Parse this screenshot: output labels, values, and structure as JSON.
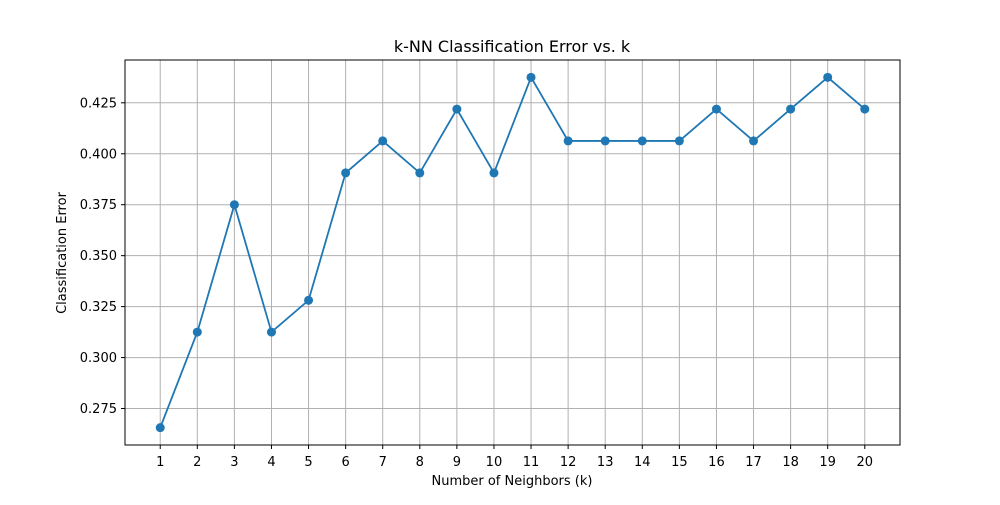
{
  "chart_data": {
    "type": "line",
    "title": "k-NN Classification Error vs. k",
    "xlabel": "Number of Neighbors (k)",
    "ylabel": "Classification Error",
    "x": [
      1,
      2,
      3,
      4,
      5,
      6,
      7,
      8,
      9,
      10,
      11,
      12,
      13,
      14,
      15,
      16,
      17,
      18,
      19,
      20
    ],
    "series": [
      {
        "values": [
          0.2656,
          0.3125,
          0.375,
          0.3125,
          0.3281,
          0.3906,
          0.4063,
          0.3906,
          0.4219,
          0.3906,
          0.4375,
          0.4063,
          0.4063,
          0.4063,
          0.4063,
          0.4219,
          0.4063,
          0.4219,
          0.4375,
          0.4219
        ],
        "color": "#1f77b4",
        "marker": "circle"
      }
    ],
    "xticks": [
      "1",
      "2",
      "3",
      "4",
      "5",
      "6",
      "7",
      "8",
      "9",
      "10",
      "11",
      "12",
      "13",
      "14",
      "15",
      "16",
      "17",
      "18",
      "19",
      "20"
    ],
    "yticks": [
      "0.275",
      "0.300",
      "0.325",
      "0.350",
      "0.375",
      "0.400",
      "0.425"
    ],
    "ytick_values": [
      0.275,
      0.3,
      0.325,
      0.35,
      0.375,
      0.4,
      0.425
    ],
    "xlim": [
      0.05,
      20.95
    ],
    "ylim": [
      0.2571,
      0.446
    ],
    "grid": true
  }
}
